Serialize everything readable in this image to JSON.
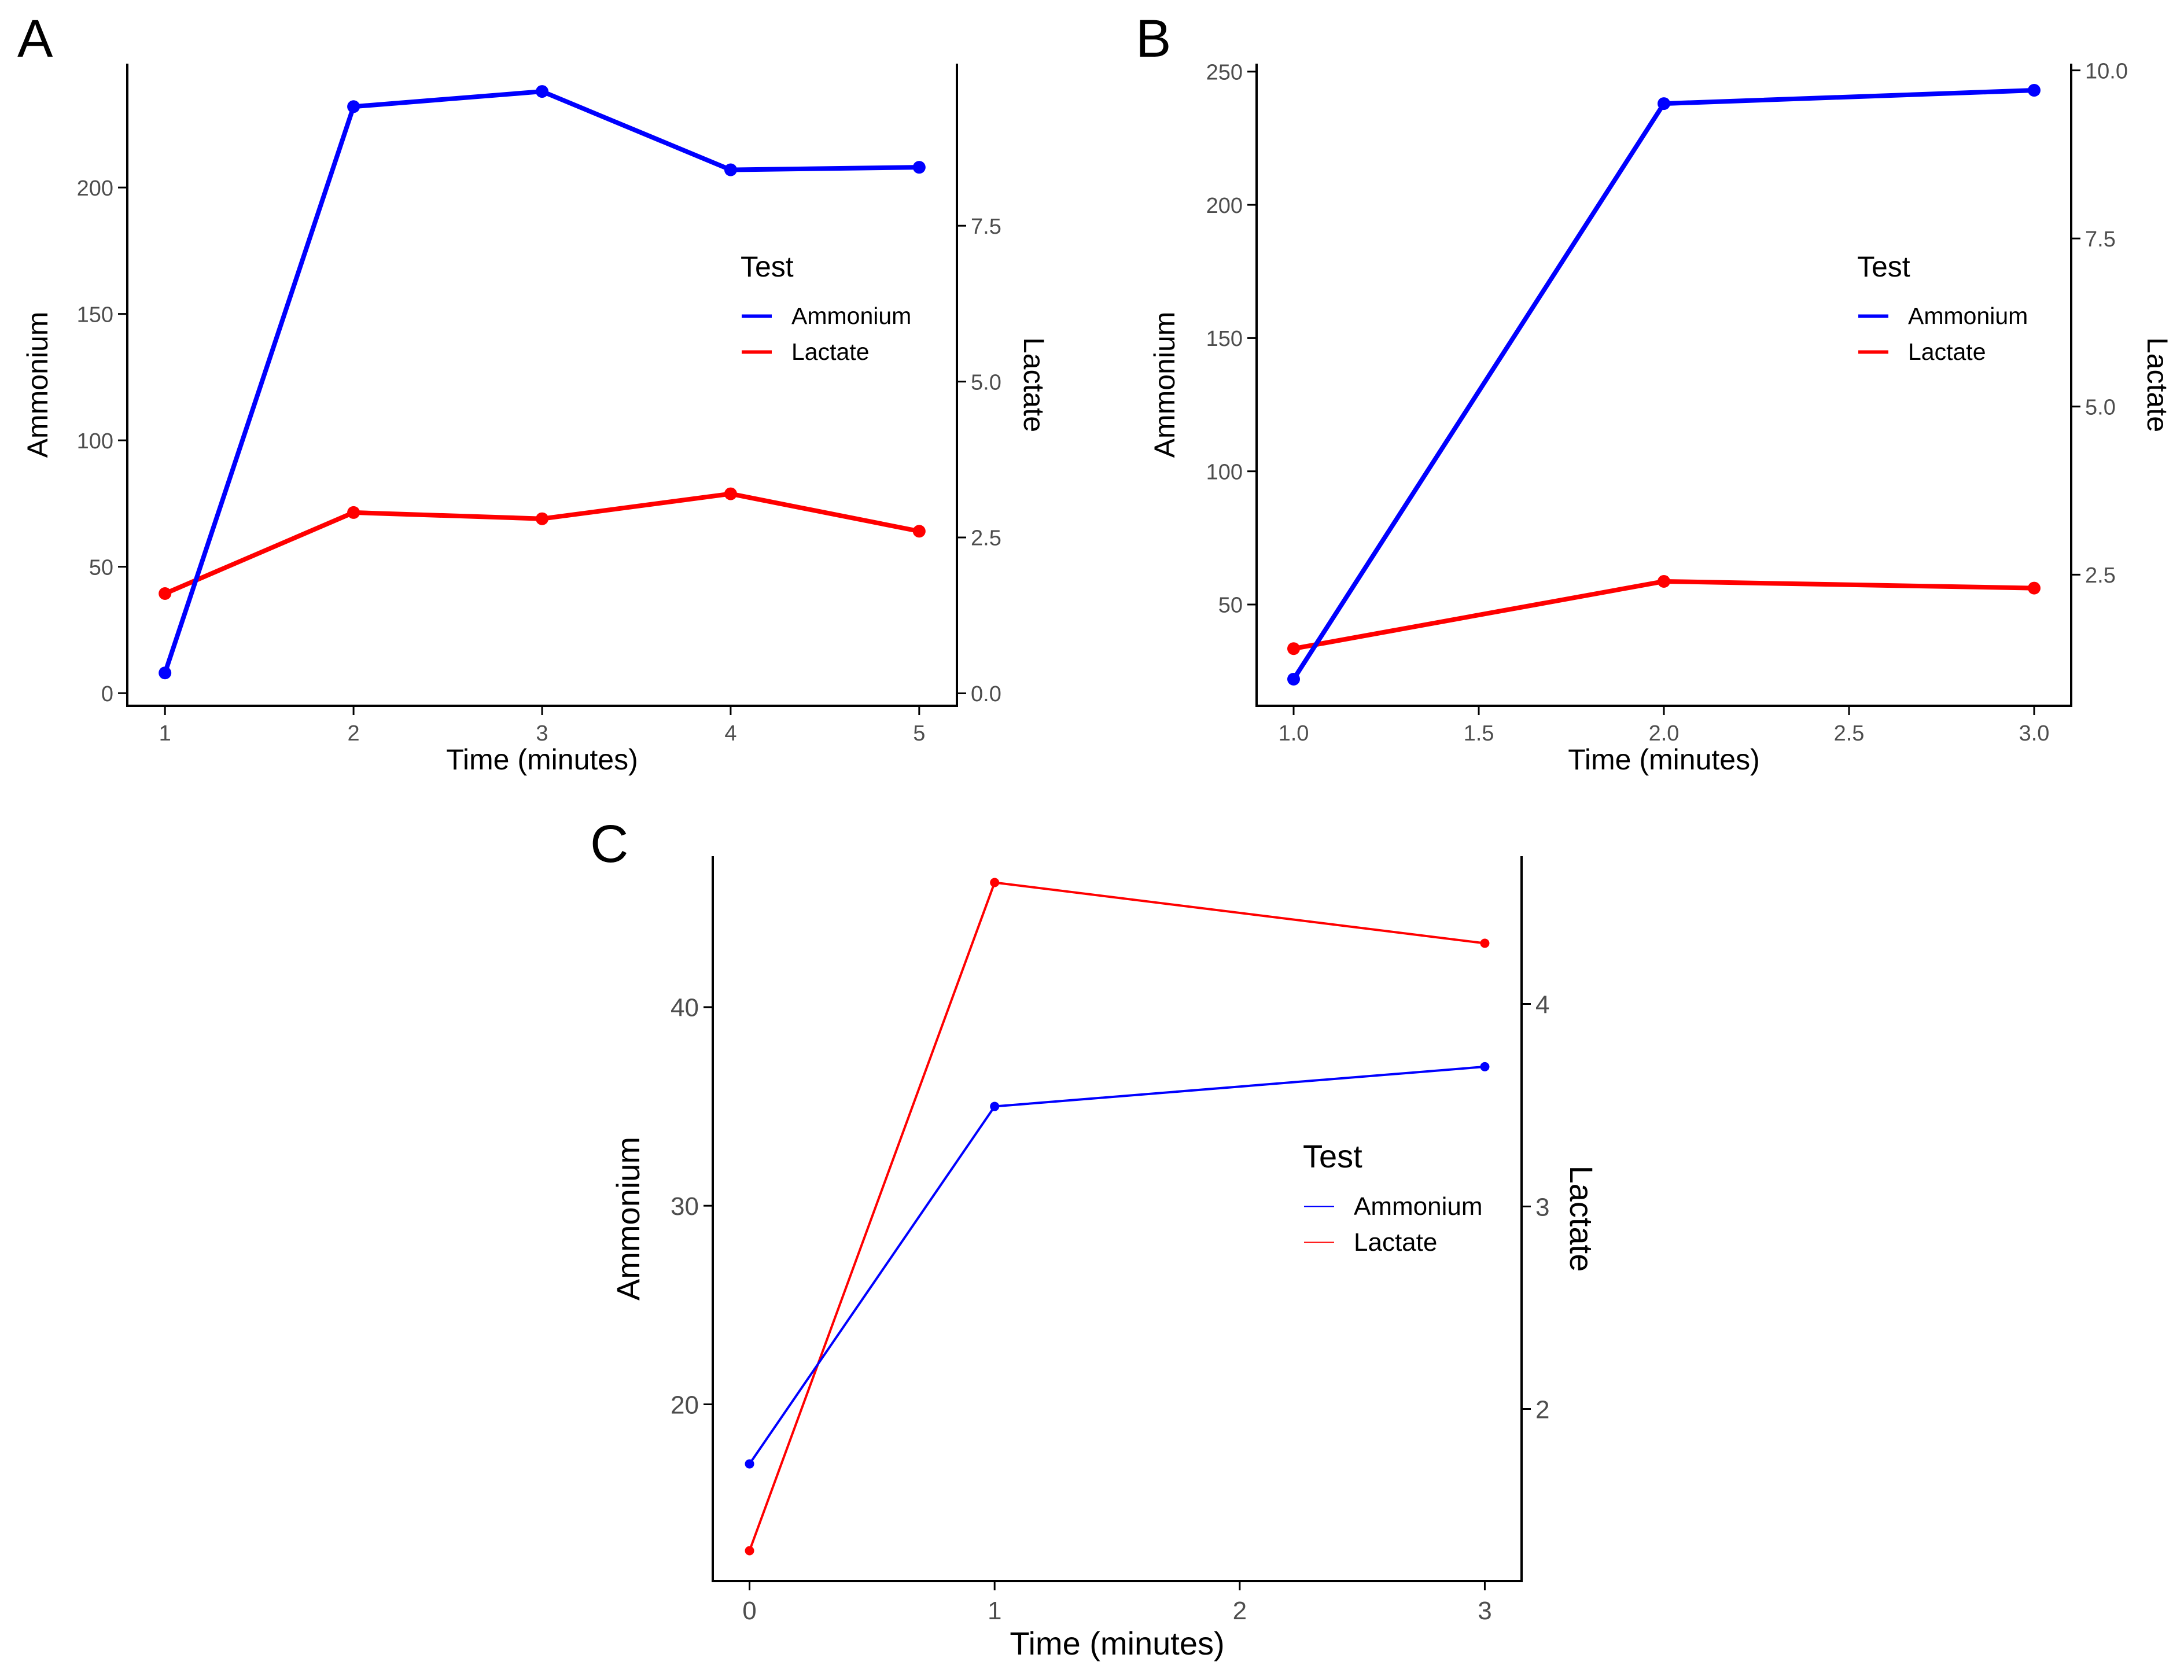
{
  "figure": {
    "panel_labels": [
      "A",
      "B",
      "C"
    ]
  },
  "colors": {
    "ammonium": "#0000FF",
    "lactate": "#FF0000",
    "axis": "#000000",
    "tick_text": "#4D4D4D"
  },
  "chart_data": [
    {
      "panel": "A",
      "type": "line",
      "xlabel": "Time (minutes)",
      "ylabel": "Ammonium",
      "y2label": "Lactate",
      "legend": {
        "title": "Test",
        "entries": [
          "Ammonium",
          "Lactate"
        ],
        "placement": "right-inside"
      },
      "xlim": [
        0.8,
        5.2
      ],
      "ylim": [
        -5,
        249
      ],
      "y2lim": [
        -0.2,
        10.1
      ],
      "x_ticks": [
        1,
        2,
        3,
        4,
        5
      ],
      "x_tick_labels": [
        "1",
        "2",
        "3",
        "4",
        "5"
      ],
      "y_ticks": [
        0,
        50,
        100,
        150,
        200
      ],
      "y_tick_labels": [
        "0",
        "50",
        "100",
        "150",
        "200"
      ],
      "y2_ticks": [
        0,
        2.5,
        5,
        7.5
      ],
      "y2_tick_labels": [
        "0.0",
        "2.5",
        "5.0",
        "7.5"
      ],
      "series": [
        {
          "name": "Ammonium",
          "axis": "left",
          "x": [
            1,
            2,
            3,
            4,
            5
          ],
          "values": [
            8,
            232,
            238,
            207,
            208
          ]
        },
        {
          "name": "Lactate",
          "axis": "right",
          "x": [
            1,
            2,
            3,
            4,
            5
          ],
          "values": [
            1.6,
            2.9,
            2.8,
            3.2,
            2.6
          ]
        }
      ]
    },
    {
      "panel": "B",
      "type": "line",
      "xlabel": "Time (minutes)",
      "ylabel": "Ammonium",
      "y2label": "Lactate",
      "legend": {
        "title": "Test",
        "entries": [
          "Ammonium",
          "Lactate"
        ],
        "placement": "right-inside"
      },
      "xlim": [
        0.9,
        3.1
      ],
      "ylim": [
        12,
        253
      ],
      "y2lim": [
        0.55,
        10.1
      ],
      "x_ticks": [
        1,
        1.5,
        2,
        2.5,
        3
      ],
      "x_tick_labels": [
        "1.0",
        "1.5",
        "2.0",
        "2.5",
        "3.0"
      ],
      "y_ticks": [
        50,
        100,
        150,
        200,
        250
      ],
      "y_tick_labels": [
        "50",
        "100",
        "150",
        "200",
        "250"
      ],
      "y2_ticks": [
        2.5,
        5,
        7.5,
        10
      ],
      "y2_tick_labels": [
        "2.5",
        "5.0",
        "7.5",
        "10.0"
      ],
      "series": [
        {
          "name": "Ammonium",
          "axis": "left",
          "x": [
            1,
            2,
            3
          ],
          "values": [
            22,
            238,
            243
          ]
        },
        {
          "name": "Lactate",
          "axis": "right",
          "x": [
            1,
            2,
            3
          ],
          "values": [
            1.4,
            2.4,
            2.3
          ]
        }
      ]
    },
    {
      "panel": "C",
      "type": "line",
      "xlabel": "Time (minutes)",
      "ylabel": "Ammonium",
      "y2label": "Lactate",
      "legend": {
        "title": "Test",
        "entries": [
          "Ammonium",
          "Lactate"
        ],
        "placement": "right-inside"
      },
      "xlim": [
        -0.15,
        3.15
      ],
      "ylim": [
        11.1,
        47.6
      ],
      "y2lim": [
        1.15,
        4.73
      ],
      "x_ticks": [
        0,
        1,
        2,
        3
      ],
      "x_tick_labels": [
        "0",
        "1",
        "2",
        "3"
      ],
      "y_ticks": [
        20,
        30,
        40
      ],
      "y_tick_labels": [
        "20",
        "30",
        "40"
      ],
      "y2_ticks": [
        2,
        3,
        4
      ],
      "y2_tick_labels": [
        "2",
        "3",
        "4"
      ],
      "series": [
        {
          "name": "Ammonium",
          "axis": "left",
          "x": [
            0,
            1,
            3
          ],
          "values": [
            17,
            35,
            37
          ]
        },
        {
          "name": "Lactate",
          "axis": "right",
          "x": [
            0,
            1,
            3
          ],
          "values": [
            1.3,
            4.6,
            4.3
          ]
        }
      ]
    }
  ]
}
